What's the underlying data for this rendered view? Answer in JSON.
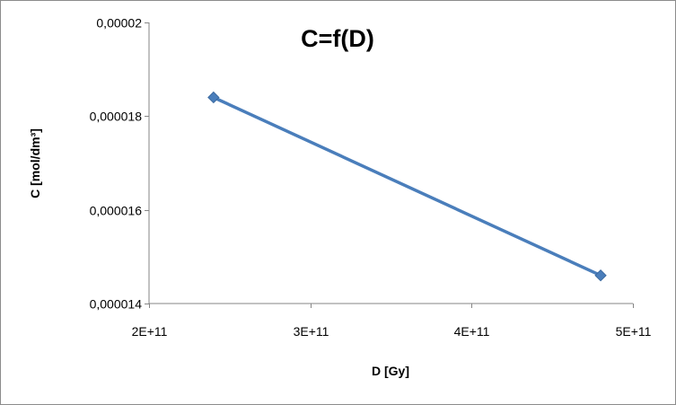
{
  "chart_data": {
    "type": "line",
    "title": "C=f(D)",
    "xlabel": "D [Gy]",
    "ylabel": "C [mol/dm³]",
    "xlim": [
      200000000000,
      500000000000
    ],
    "ylim": [
      1.4e-05,
      2e-05
    ],
    "x_ticks": [
      200000000000,
      300000000000,
      400000000000,
      500000000000
    ],
    "x_tick_labels": [
      "2E+11",
      "3E+11",
      "4E+11",
      "5E+11"
    ],
    "y_ticks": [
      1.4e-05,
      1.6e-05,
      1.8e-05,
      2e-05
    ],
    "y_tick_labels": [
      "0,000014",
      "0,000016",
      "0,000018",
      "0,00002"
    ],
    "grid": false,
    "legend": "none",
    "series": [
      {
        "color": "#4a7ebb",
        "marker": "diamond",
        "x": [
          240000000000,
          480000000000
        ],
        "y": [
          1.84e-05,
          1.46e-05
        ]
      }
    ]
  }
}
